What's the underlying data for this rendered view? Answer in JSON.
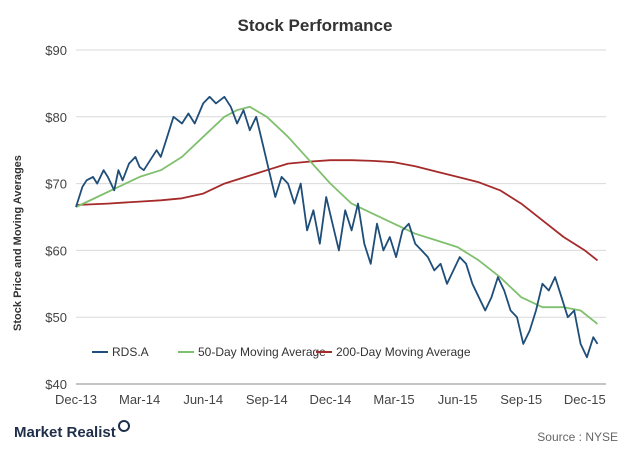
{
  "chart_data": {
    "type": "line",
    "title": "Stock Performance",
    "ylabel": "Stock Price and Moving Averages",
    "xlabel": "",
    "ylim": [
      40,
      90
    ],
    "yticks": [
      "$40",
      "$50",
      "$60",
      "$70",
      "$80",
      "$90"
    ],
    "ytick_values": [
      40,
      50,
      60,
      70,
      80,
      90
    ],
    "xticks": [
      "Dec-13",
      "Mar-14",
      "Jun-14",
      "Sep-14",
      "Dec-14",
      "Mar-15",
      "Jun-15",
      "Sep-15",
      "Dec-15"
    ],
    "xlim": [
      0,
      25
    ],
    "grid": "horizontal",
    "legend_position": "bottom-left",
    "series": [
      {
        "name": "RDS.A",
        "color": "#1f4e79",
        "x": [
          0,
          0.3,
          0.5,
          0.8,
          1.0,
          1.3,
          1.5,
          1.8,
          2.0,
          2.2,
          2.5,
          2.8,
          3.0,
          3.2,
          3.5,
          3.8,
          4.0,
          4.3,
          4.6,
          5.0,
          5.3,
          5.6,
          6.0,
          6.3,
          6.6,
          7.0,
          7.3,
          7.6,
          7.9,
          8.2,
          8.5,
          8.8,
          9.1,
          9.4,
          9.7,
          10.0,
          10.3,
          10.6,
          10.9,
          11.2,
          11.5,
          11.8,
          12.1,
          12.4,
          12.7,
          13.0,
          13.3,
          13.6,
          13.9,
          14.2,
          14.5,
          14.8,
          15.1,
          15.4,
          15.7,
          16.0,
          16.3,
          16.6,
          16.9,
          17.2,
          17.5,
          17.8,
          18.1,
          18.4,
          18.7,
          19.0,
          19.3,
          19.6,
          19.9,
          20.2,
          20.5,
          20.8,
          21.1,
          21.4,
          21.7,
          22.0,
          22.3,
          22.6,
          22.9,
          23.2,
          23.5,
          23.8,
          24.1,
          24.4,
          24.6
        ],
        "y": [
          66.5,
          69.5,
          70.5,
          71,
          70,
          72,
          71,
          69,
          72,
          70.5,
          73,
          74,
          72.5,
          72,
          73.5,
          75,
          74,
          77,
          80,
          79,
          80.5,
          79,
          82,
          83,
          82,
          83,
          81.5,
          79,
          81,
          78,
          80,
          76,
          72,
          68,
          71,
          70,
          67,
          70,
          63,
          66,
          61,
          68,
          64,
          60,
          66,
          63,
          67,
          61,
          58,
          64,
          60,
          62,
          59,
          63,
          64,
          61,
          60,
          59,
          57,
          58,
          55,
          57,
          59,
          58,
          55,
          53,
          51,
          53,
          56,
          54,
          51,
          50,
          46,
          48,
          51,
          55,
          54,
          56,
          53,
          50,
          51,
          46,
          44,
          47,
          46
        ]
      },
      {
        "name": "50-Day Moving Average",
        "color": "#7fc06e",
        "x": [
          0,
          1.0,
          2.0,
          3.0,
          4.0,
          5.0,
          6.0,
          7.0,
          7.6,
          8.2,
          9.0,
          10.0,
          11.0,
          12.0,
          13.0,
          14.0,
          15.0,
          16.0,
          17.0,
          18.0,
          19.0,
          20.0,
          21.0,
          22.0,
          23.0,
          23.8,
          24.6
        ],
        "y": [
          66.5,
          68,
          69.5,
          71,
          72,
          74,
          77,
          80,
          81,
          81.5,
          80,
          77,
          73.5,
          70,
          67,
          65.5,
          64,
          62.5,
          61.5,
          60.5,
          58.5,
          56,
          53,
          51.5,
          51.5,
          51,
          49
        ]
      },
      {
        "name": "200-Day Moving Average",
        "color": "#a52a2a",
        "x": [
          0,
          1.5,
          3.0,
          4.0,
          5.0,
          6.0,
          7.0,
          8.0,
          9.0,
          10.0,
          11.0,
          12.0,
          13.0,
          14.0,
          15.0,
          16.0,
          17.0,
          18.0,
          19.0,
          20.0,
          21.0,
          22.0,
          23.0,
          24.0,
          24.6
        ],
        "y": [
          66.8,
          67,
          67.3,
          67.5,
          67.8,
          68.5,
          70,
          71,
          72,
          73,
          73.3,
          73.5,
          73.5,
          73.4,
          73.2,
          72.6,
          71.8,
          71,
          70.2,
          69,
          67,
          64.5,
          62,
          60,
          58.5
        ]
      }
    ]
  },
  "footer": {
    "brand": "Market Realist",
    "source": "Source : NYSE"
  }
}
